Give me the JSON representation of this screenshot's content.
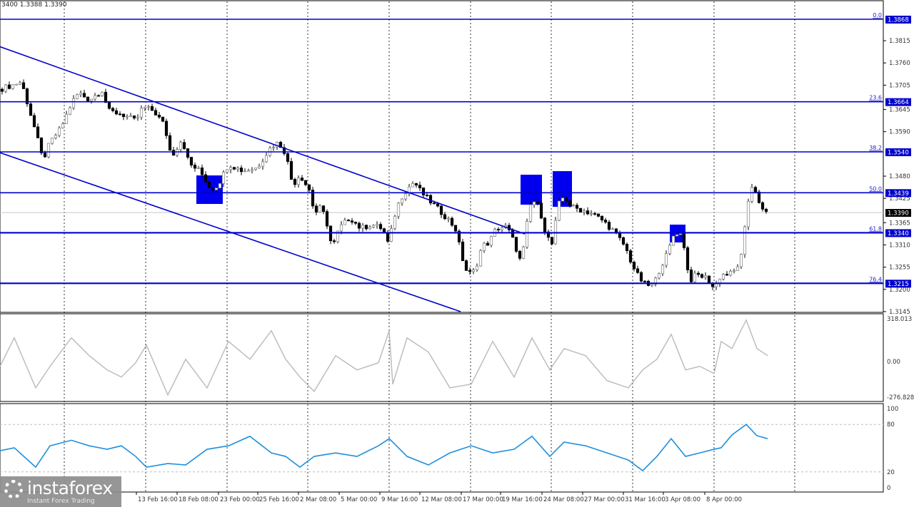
{
  "header": {
    "ohlc_text": "3400 1.3388 1.3390"
  },
  "colors": {
    "level": "#0000cc",
    "zone": "#0000ee",
    "bull": "#ffffff",
    "bear": "#000000",
    "cci": "#bdbdbd",
    "rsi": "#1e8fdc",
    "current": "#000000"
  },
  "logo": {
    "name": "instaforex",
    "tagline": "Instant Forex Trading"
  },
  "chart_data": [
    {
      "type": "candlestick",
      "title": "",
      "price_axis": {
        "ticks": [
          "1.3815",
          "1.3760",
          "1.3705",
          "1.3645",
          "1.3590",
          "1.3480",
          "1.3425",
          "1.3365",
          "1.3310",
          "1.3255",
          "1.3200",
          "1.3145"
        ],
        "range": [
          1.3145,
          1.3868
        ]
      },
      "current_price": {
        "value": 1.339,
        "label": "1.3390"
      },
      "fib_levels": [
        {
          "ratio": "0.0",
          "price": "1.3868"
        },
        {
          "ratio": "23.6",
          "price": "1.3664"
        },
        {
          "ratio": "38.2",
          "price": "1.3540"
        },
        {
          "ratio": "50.0",
          "price": "1.3439"
        },
        {
          "ratio": "61.8",
          "price": "1.3340"
        },
        {
          "ratio": "76.4",
          "price": "1.3215"
        }
      ],
      "closes": [
        1.3695,
        1.3713,
        1.3651,
        1.3589,
        1.3519,
        1.3563,
        1.3598,
        1.366,
        1.3686,
        1.3669,
        1.3695,
        1.3642,
        1.3634,
        1.3616,
        1.3651,
        1.3642,
        1.3607,
        1.3528,
        1.3572,
        1.351,
        1.3493,
        1.3448,
        1.3457,
        1.351,
        1.3493,
        1.3501,
        1.3554,
        1.3563,
        1.3537,
        1.3457,
        1.3484,
        1.344,
        1.3387,
        1.3404,
        1.3351,
        1.3299,
        1.3351,
        1.3378,
        1.3351,
        1.336,
        1.3351,
        1.3307,
        1.3369,
        1.3422,
        1.3448,
        1.3466,
        1.344,
        1.3422,
        1.3396,
        1.3369,
        1.3343,
        1.329,
        1.3237,
        1.3246,
        1.3307,
        1.3316,
        1.3351,
        1.3355,
        1.3316,
        1.3263,
        1.3387,
        1.3422,
        1.3404,
        1.3334,
        1.3307,
        1.3404,
        1.3431,
        1.3404,
        1.3396,
        1.3387,
        1.3369,
        1.3343,
        1.3307,
        1.3263,
        1.3228,
        1.321,
        1.321,
        1.3255,
        1.329,
        1.3343,
        1.3334,
        1.329,
        1.3219,
        1.3237,
        1.3228,
        1.3202,
        1.3237,
        1.3237,
        1.3246,
        1.329,
        1.3387,
        1.344,
        1.3466,
        1.3431,
        1.3396,
        1.339
      ],
      "channel": {
        "upper": [
          1.38,
          1.3337
        ],
        "lower": [
          1.3538,
          1.3145
        ]
      },
      "zones": [
        "18 Feb",
        "19 Mar",
        "20 Mar",
        "1 Apr"
      ]
    },
    {
      "type": "line",
      "name": "",
      "axis_ticks": [
        "318.013",
        "0.00",
        "-276.828"
      ],
      "range": [
        -276.828,
        318.013
      ],
      "values": [
        -43,
        173,
        -206,
        -43,
        173,
        38,
        -70,
        -124,
        -16,
        119,
        -260,
        11,
        -206,
        146,
        11,
        227,
        11,
        -124,
        -233,
        38,
        -70,
        -16,
        227,
        -178,
        173,
        65,
        -206,
        -178,
        146,
        -124,
        173,
        -70,
        92,
        38,
        -151,
        -206,
        -70,
        11,
        200,
        -70,
        -43,
        -97,
        146,
        92,
        308,
        92,
        38
      ]
    },
    {
      "type": "line",
      "name": "",
      "axis_ticks": [
        "100",
        "80",
        "20",
        "0"
      ],
      "range": [
        0,
        100
      ],
      "levels": [
        80,
        20
      ],
      "values": [
        46.8,
        50.5,
        26,
        53,
        60,
        53,
        48.6,
        53,
        39.6,
        26,
        30.6,
        28.8,
        48.6,
        53,
        65,
        44,
        39.6,
        26,
        39.6,
        44,
        39.6,
        53,
        62,
        57.7,
        39.6,
        28.8,
        44,
        53,
        44,
        48.6,
        65,
        39.6,
        57.7,
        53,
        44,
        35,
        21.6,
        39.6,
        62,
        39.6,
        44,
        48.6,
        50.5,
        66.7,
        80,
        65.8,
        62
      ]
    }
  ],
  "time_axis": [
    "13 Feb 16:00",
    "18 Feb 08:00",
    "23 Feb 00:00",
    "25 Feb 16:00",
    "2 Mar 08:00",
    "5 Mar 00:00",
    "9 Mar 16:00",
    "12 Mar 08:00",
    "17 Mar 00:00",
    "19 Mar 16:00",
    "24 Mar 08:00",
    "27 Mar 00:00",
    "31 Mar 16:00",
    "3 Apr 08:00",
    "8 Apr 00:00"
  ]
}
